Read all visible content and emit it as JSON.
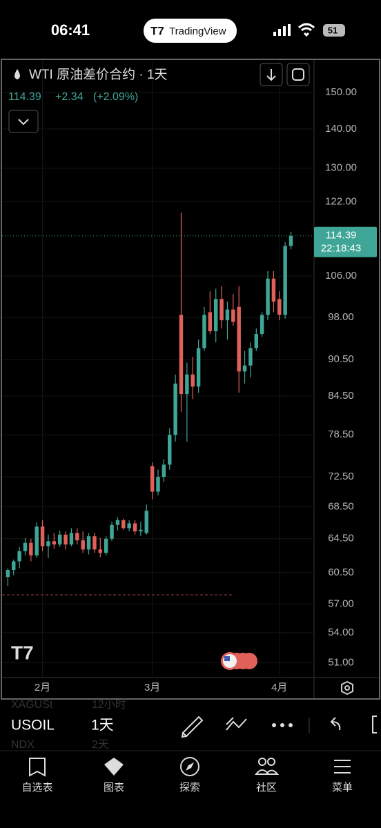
{
  "status_bar": {
    "time": "06:41",
    "brand": "TradingView",
    "battery": "51"
  },
  "header": {
    "title": "WTI 原油差价合约 · 1天",
    "price": "114.39",
    "change": "+2.34",
    "change_pct": "(+2.09%)",
    "countdown": "22:18:43"
  },
  "chart_data": {
    "type": "candlestick",
    "log_scale": true,
    "grid": true,
    "up_color": "#3fa596",
    "down_color": "#e0615a",
    "ylim": [
      49.6,
      159.3
    ],
    "yticks": [
      {
        "value": 51,
        "label": "51.00"
      },
      {
        "value": 54,
        "label": "54.00"
      },
      {
        "value": 57,
        "label": "57.00"
      },
      {
        "value": 60.5,
        "label": "60.50"
      },
      {
        "value": 64.5,
        "label": "64.50"
      },
      {
        "value": 68.5,
        "label": "68.50"
      },
      {
        "value": 72.5,
        "label": "72.50"
      },
      {
        "value": 78.5,
        "label": "78.50"
      },
      {
        "value": 84.5,
        "label": "84.50"
      },
      {
        "value": 90.5,
        "label": "90.50"
      },
      {
        "value": 98,
        "label": "98.00"
      },
      {
        "value": 106,
        "label": "106.00"
      },
      {
        "value": 122,
        "label": "122.00"
      },
      {
        "value": 130,
        "label": "130.00"
      },
      {
        "value": 140,
        "label": "140.00"
      },
      {
        "value": 150,
        "label": "150.00"
      }
    ],
    "xlim": [
      -1,
      53
    ],
    "xticks": [
      {
        "value": 6,
        "label": "2月"
      },
      {
        "value": 25,
        "label": "3月"
      },
      {
        "value": 47,
        "label": "4月"
      }
    ],
    "marker_line": 58.0,
    "open": [
      60,
      60.8,
      61.8,
      63,
      64,
      62.5,
      66,
      63.6,
      64.2,
      63.8,
      65,
      63.8,
      65.2,
      64.3,
      63.2,
      64.8,
      63.2,
      62.8,
      64.5,
      66.2,
      66.8,
      65.8,
      66.4,
      65.4,
      65.2,
      74,
      70.5,
      72.5,
      74.2,
      78.5,
      98.5,
      84.8,
      88,
      86,
      92.5,
      99,
      95.5,
      101.5,
      97.5,
      99.5,
      100,
      88.5,
      89.5,
      92.5,
      95,
      98.5,
      105.5,
      101.5,
      98.5,
      112.2
    ],
    "high": [
      61,
      62,
      63.5,
      64.6,
      64.5,
      66.5,
      66.8,
      65,
      65.2,
      65.5,
      65.4,
      65.8,
      65.8,
      65.4,
      65.2,
      65.2,
      64.6,
      64.8,
      66.6,
      67.2,
      67,
      66.8,
      66.8,
      66.6,
      68.8,
      74.5,
      73.5,
      75,
      79.5,
      88,
      119.5,
      90,
      91,
      94,
      100,
      103,
      103.5,
      104,
      101,
      102.5,
      104,
      92,
      93.5,
      96,
      99,
      107,
      107,
      103,
      113,
      115.3
    ],
    "low": [
      59,
      60.2,
      61,
      62.5,
      61.8,
      62.2,
      63,
      62.2,
      63.3,
      63.5,
      63.2,
      63.6,
      63.8,
      62.8,
      62.6,
      62.8,
      62.3,
      62.5,
      64.2,
      65.5,
      65.6,
      65.4,
      65,
      64.8,
      65,
      69.5,
      70,
      71.8,
      73.5,
      77.5,
      82,
      77.5,
      84,
      85,
      92,
      95,
      93.5,
      96,
      94,
      96.5,
      85,
      86.5,
      87.5,
      92,
      94.5,
      97.5,
      99,
      97.5,
      97.8,
      111.5
    ],
    "close": [
      60.8,
      61.8,
      63,
      64,
      62.5,
      66,
      63.6,
      64.2,
      63.8,
      65,
      63.8,
      65.2,
      64.3,
      63.2,
      64.8,
      63.2,
      62.8,
      64.5,
      66.2,
      66.8,
      65.8,
      66.4,
      65.4,
      65.6,
      68,
      70.5,
      72.5,
      74.2,
      78.5,
      86.5,
      84.8,
      88,
      86,
      92.5,
      98.5,
      95.5,
      101.5,
      97.5,
      99.5,
      97.2,
      88.5,
      89.5,
      92.5,
      95,
      98.5,
      105.5,
      101,
      98.5,
      112.2,
      114.39
    ]
  },
  "toolbar": {
    "symbol": "USOIL",
    "interval": "1天",
    "ghost_symbol_1": "XAGUSt",
    "ghost_interval_1": "12小时",
    "ghost_symbol_2": "NDX",
    "ghost_interval_2": "2天"
  },
  "tabs": [
    "自选表",
    "图表",
    "探索",
    "社区",
    "菜单"
  ]
}
